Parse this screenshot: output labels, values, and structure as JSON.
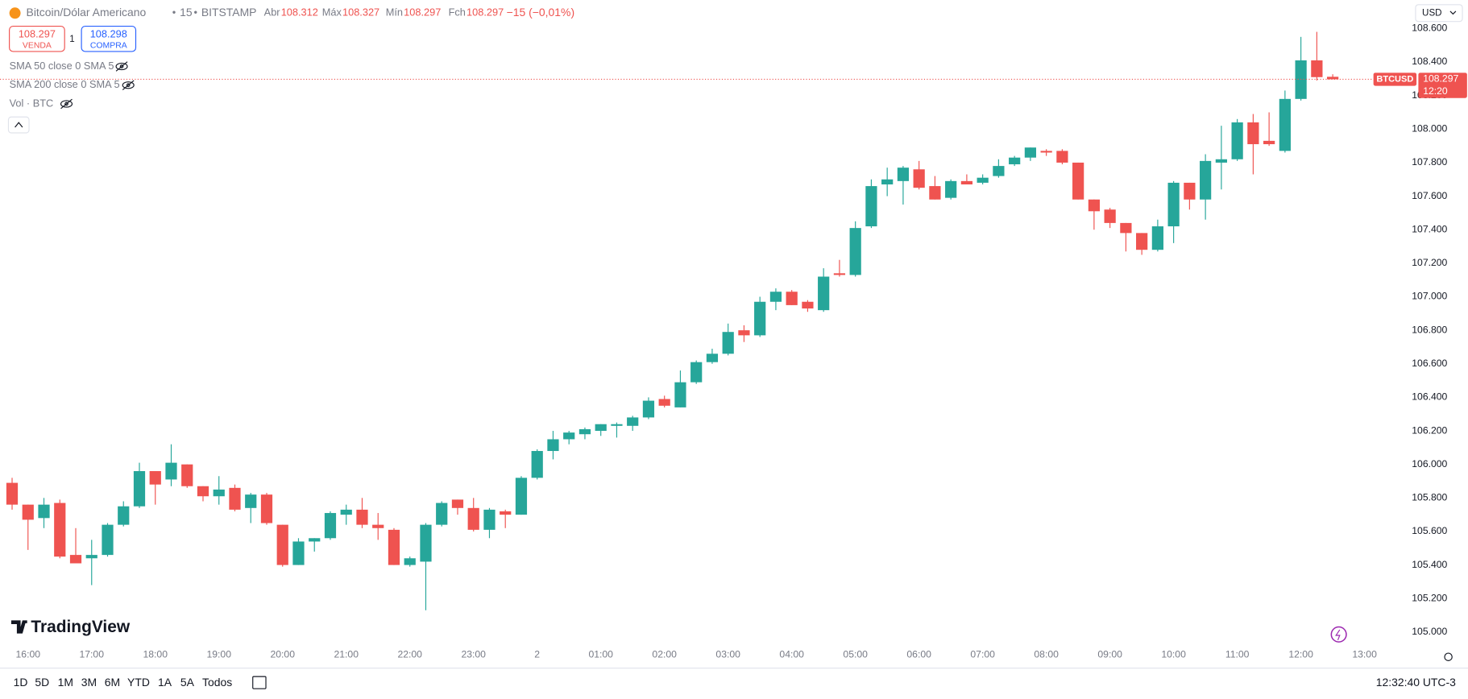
{
  "chart_data": {
    "type": "candlestick",
    "title": "Bitcoin/Dólar Americano",
    "interval": "15",
    "exchange": "BITSTAMP",
    "symbol": "BTCUSD",
    "ohlc_labels": [
      "Abr",
      "Máx",
      "Mín",
      "Fch"
    ],
    "change": "−15 (−0,01%)",
    "countdown": "12:20",
    "bid": {
      "value": 108.297,
      "label": "VENDA"
    },
    "ask": {
      "value": 108.298,
      "label": "COMPRA"
    },
    "quantity": "1",
    "up_color": "#26a69a",
    "down_color": "#ef5350",
    "grid": false,
    "open": [
      105.89,
      105.76,
      105.68,
      105.77,
      105.46,
      105.44,
      105.46,
      105.64,
      105.75,
      105.96,
      105.91,
      106.0,
      105.87,
      105.81,
      105.86,
      105.74,
      105.82,
      105.64,
      105.4,
      105.54,
      105.56,
      105.7,
      105.73,
      105.64,
      105.61,
      105.4,
      105.42,
      105.64,
      105.79,
      105.74,
      105.61,
      105.72,
      105.7,
      105.92,
      106.08,
      106.15,
      106.18,
      106.2,
      106.23,
      106.23,
      106.28,
      106.39,
      106.34,
      106.49,
      106.61,
      106.66,
      106.8,
      106.77,
      106.97,
      107.03,
      106.97,
      106.92,
      107.14,
      107.13,
      107.42,
      107.67,
      107.69,
      107.76,
      107.66,
      107.59,
      107.69,
      107.68,
      107.72,
      107.79,
      107.83,
      107.87,
      107.87,
      107.8,
      107.58,
      107.52,
      107.44,
      107.38,
      107.28,
      107.42,
      107.68,
      107.58,
      107.8,
      107.82,
      108.04,
      107.93,
      107.87,
      108.18,
      108.41,
      108.312
    ],
    "high": [
      105.92,
      105.76,
      105.8,
      105.79,
      105.62,
      105.55,
      105.65,
      105.78,
      106.01,
      105.96,
      106.12,
      106.0,
      105.87,
      105.93,
      105.88,
      105.83,
      105.83,
      105.64,
      105.56,
      105.56,
      105.72,
      105.76,
      105.8,
      105.71,
      105.62,
      105.45,
      105.65,
      105.78,
      105.79,
      105.8,
      105.74,
      105.73,
      105.93,
      106.09,
      106.2,
      106.2,
      106.22,
      106.24,
      106.25,
      106.29,
      106.4,
      106.41,
      106.56,
      106.62,
      106.69,
      106.84,
      106.83,
      107.0,
      107.05,
      107.04,
      106.98,
      107.17,
      107.22,
      107.45,
      107.7,
      107.77,
      107.78,
      107.81,
      107.72,
      107.7,
      107.73,
      107.73,
      107.82,
      107.84,
      107.89,
      107.88,
      107.88,
      107.8,
      107.58,
      107.53,
      107.44,
      107.38,
      107.46,
      107.69,
      107.68,
      107.85,
      108.02,
      108.06,
      108.09,
      108.1,
      108.23,
      108.55,
      108.58,
      108.327
    ],
    "low": [
      105.73,
      105.49,
      105.62,
      105.44,
      105.41,
      105.28,
      105.45,
      105.63,
      105.74,
      105.76,
      105.87,
      105.86,
      105.78,
      105.76,
      105.72,
      105.65,
      105.64,
      105.39,
      105.4,
      105.48,
      105.55,
      105.64,
      105.62,
      105.55,
      105.4,
      105.39,
      105.13,
      105.63,
      105.7,
      105.6,
      105.56,
      105.62,
      105.7,
      105.91,
      106.03,
      106.12,
      106.15,
      106.17,
      106.16,
      106.2,
      106.27,
      106.34,
      106.34,
      106.48,
      106.6,
      106.65,
      106.73,
      106.76,
      106.92,
      106.95,
      106.91,
      106.91,
      107.12,
      107.12,
      107.41,
      107.6,
      107.55,
      107.64,
      107.58,
      107.58,
      107.67,
      107.67,
      107.71,
      107.78,
      107.81,
      107.84,
      107.79,
      107.58,
      107.4,
      107.41,
      107.27,
      107.25,
      107.27,
      107.32,
      107.52,
      107.46,
      107.64,
      107.81,
      107.73,
      107.9,
      107.86,
      108.17,
      108.29,
      108.297
    ],
    "close": [
      105.76,
      105.67,
      105.76,
      105.45,
      105.41,
      105.46,
      105.64,
      105.75,
      105.96,
      105.88,
      106.01,
      105.87,
      105.81,
      105.85,
      105.73,
      105.82,
      105.65,
      105.4,
      105.54,
      105.56,
      105.71,
      105.73,
      105.64,
      105.62,
      105.4,
      105.44,
      105.64,
      105.77,
      105.74,
      105.61,
      105.73,
      105.7,
      105.92,
      106.08,
      106.15,
      106.19,
      106.21,
      106.24,
      106.24,
      106.28,
      106.38,
      106.35,
      106.49,
      106.61,
      106.66,
      106.79,
      106.77,
      106.97,
      107.03,
      106.95,
      106.93,
      107.12,
      107.13,
      107.41,
      107.66,
      107.7,
      107.77,
      107.65,
      107.58,
      107.69,
      107.67,
      107.71,
      107.78,
      107.83,
      107.89,
      107.86,
      107.8,
      107.58,
      107.51,
      107.44,
      107.38,
      107.28,
      107.42,
      107.68,
      107.58,
      107.81,
      107.82,
      108.04,
      107.91,
      107.91,
      108.18,
      108.41,
      108.31,
      108.297
    ],
    "ylim": [
      104.93,
      108.77
    ],
    "yticks": [
      {
        "value": 105.0,
        "label": "105.000"
      },
      {
        "value": 105.2,
        "label": "105.200"
      },
      {
        "value": 105.4,
        "label": "105.400"
      },
      {
        "value": 105.6,
        "label": "105.600"
      },
      {
        "value": 105.8,
        "label": "105.800"
      },
      {
        "value": 106.0,
        "label": "106.000"
      },
      {
        "value": 106.2,
        "label": "106.200"
      },
      {
        "value": 106.4,
        "label": "106.400"
      },
      {
        "value": 106.6,
        "label": "106.600"
      },
      {
        "value": 106.8,
        "label": "106.800"
      },
      {
        "value": 107.0,
        "label": "107.000"
      },
      {
        "value": 107.2,
        "label": "107.200"
      },
      {
        "value": 107.4,
        "label": "107.400"
      },
      {
        "value": 107.6,
        "label": "107.600"
      },
      {
        "value": 107.8,
        "label": "107.800"
      },
      {
        "value": 108.0,
        "label": "108.000"
      },
      {
        "value": 108.2,
        "label": "108.200"
      },
      {
        "value": 108.4,
        "label": "108.400"
      },
      {
        "value": 108.6,
        "label": "108.600"
      }
    ],
    "xlim": [
      -0.76,
      87.5
    ],
    "xticks": [
      {
        "value": 1,
        "label": "16:00"
      },
      {
        "value": 5,
        "label": "17:00"
      },
      {
        "value": 9,
        "label": "18:00"
      },
      {
        "value": 13,
        "label": "19:00"
      },
      {
        "value": 17,
        "label": "20:00"
      },
      {
        "value": 21,
        "label": "21:00"
      },
      {
        "value": 25,
        "label": "22:00"
      },
      {
        "value": 29,
        "label": "23:00"
      },
      {
        "value": 33,
        "label": "2"
      },
      {
        "value": 37,
        "label": "01:00"
      },
      {
        "value": 41,
        "label": "02:00"
      },
      {
        "value": 45,
        "label": "03:00"
      },
      {
        "value": 49,
        "label": "04:00"
      },
      {
        "value": 53,
        "label": "05:00"
      },
      {
        "value": 57,
        "label": "06:00"
      },
      {
        "value": 61,
        "label": "07:00"
      },
      {
        "value": 65,
        "label": "08:00"
      },
      {
        "value": 69,
        "label": "09:00"
      },
      {
        "value": 73,
        "label": "10:00"
      },
      {
        "value": 77,
        "label": "11:00"
      },
      {
        "value": 81,
        "label": "12:00"
      },
      {
        "value": 85,
        "label": "13:00"
      }
    ]
  },
  "indicators": [
    "SMA 50 close 0 SMA 5",
    "SMA 200 close 0 SMA 5",
    "Vol · BTC"
  ],
  "currency": "USD",
  "branding": "TradingView",
  "ranges": [
    "1D",
    "5D",
    "1M",
    "3M",
    "6M",
    "YTD",
    "1A",
    "5A",
    "Todos"
  ],
  "clock": "12:32:40 UTC-3"
}
